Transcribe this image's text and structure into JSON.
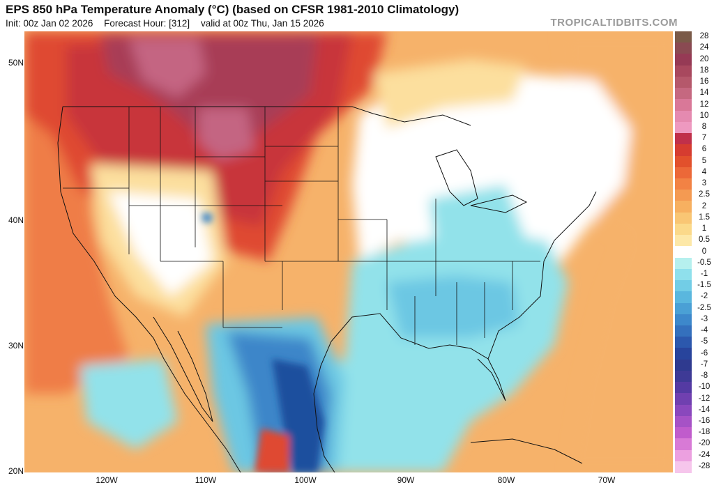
{
  "header": {
    "title": "EPS 850 hPa Temperature Anomaly (°C) (based on CFSR 1981-2010 Climatology)",
    "init": "Init: 00z Jan 02 2026",
    "forecast_hour": "Forecast Hour: [312]",
    "valid": "valid at 00z Thu, Jan 15 2026",
    "brand": "TROPICALTIDBITS.COM"
  },
  "axes": {
    "lat_labels": [
      "50N",
      "40N",
      "30N",
      "20N"
    ],
    "lon_labels": [
      "120W",
      "110W",
      "100W",
      "90W",
      "80W",
      "70W"
    ]
  },
  "colorbar": {
    "labels": [
      "28",
      "24",
      "20",
      "18",
      "16",
      "14",
      "12",
      "10",
      "8",
      "7",
      "6",
      "5",
      "4",
      "3",
      "2.5",
      "2",
      "1.5",
      "1",
      "0.5",
      "0",
      "-0.5",
      "-1",
      "-1.5",
      "-2",
      "-2.5",
      "-3",
      "-4",
      "-5",
      "-6",
      "-7",
      "-8",
      "-10",
      "-12",
      "-14",
      "-16",
      "-18",
      "-20",
      "-24",
      "-28"
    ],
    "colors": [
      "#7a5a48",
      "#8a4a52",
      "#963a55",
      "#a8485e",
      "#b5586b",
      "#c56880",
      "#d97898",
      "#e58ab0",
      "#ee99c0",
      "#c0304a",
      "#d63c30",
      "#e2502c",
      "#ec6838",
      "#f28244",
      "#f49a52",
      "#f7b060",
      "#f9c674",
      "#fbd98a",
      "#fde8a8",
      "#ffffff",
      "#b6f0ee",
      "#8fe0ec",
      "#72cde6",
      "#5ab7de",
      "#4aa0d5",
      "#3d88cb",
      "#3470bd",
      "#2c58ad",
      "#28449c",
      "#2f3a8f",
      "#3e3a96",
      "#543aa3",
      "#7040b0",
      "#8a48bd",
      "#a652c6",
      "#c05ccc",
      "#d87ad6",
      "#eca0e0",
      "#f6c6ec"
    ]
  },
  "map_colors": {
    "base_warm": "#f6b26a",
    "pacific_warm": "#ef7d47",
    "hot": "#df4a31",
    "very_hot": "#c8353a",
    "core_anomaly": "#a83e56",
    "extreme": "#c46582",
    "neutral": "#ffffff",
    "pale_warm": "#fcdf9e",
    "cool": "#92e2ea",
    "cool_mid": "#6cc7e3",
    "cold": "#3c86c9",
    "very_cold": "#1c4f9e"
  }
}
